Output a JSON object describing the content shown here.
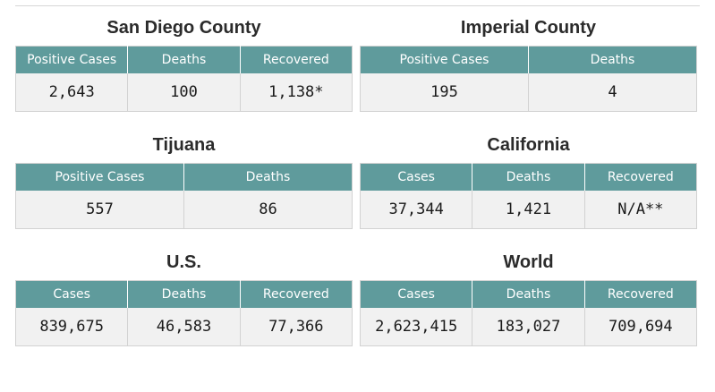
{
  "sections": {
    "san_diego": {
      "title": "San Diego County",
      "headers": [
        "Positive Cases",
        "Deaths",
        "Recovered"
      ],
      "values": [
        "2,643",
        "100",
        "1,138*"
      ]
    },
    "imperial": {
      "title": "Imperial County",
      "headers": [
        "Positive Cases",
        "Deaths"
      ],
      "values": [
        "195",
        "4"
      ]
    },
    "tijuana": {
      "title": "Tijuana",
      "headers": [
        "Positive Cases",
        "Deaths"
      ],
      "values": [
        "557",
        "86"
      ]
    },
    "california": {
      "title": "California",
      "headers": [
        "Cases",
        "Deaths",
        "Recovered"
      ],
      "values": [
        "37,344",
        "1,421",
        "N/A**"
      ]
    },
    "us": {
      "title": "U.S.",
      "headers": [
        "Cases",
        "Deaths",
        "Recovered"
      ],
      "values": [
        "839,675",
        "46,583",
        "77,366"
      ]
    },
    "world": {
      "title": "World",
      "headers": [
        "Cases",
        "Deaths",
        "Recovered"
      ],
      "values": [
        "2,623,415",
        "183,027",
        "709,694"
      ]
    }
  },
  "colors": {
    "header_bg": "#5f9b9c",
    "header_text": "#ffffff",
    "cell_bg": "#f1f1f1",
    "title_text": "#2b2b2b"
  }
}
